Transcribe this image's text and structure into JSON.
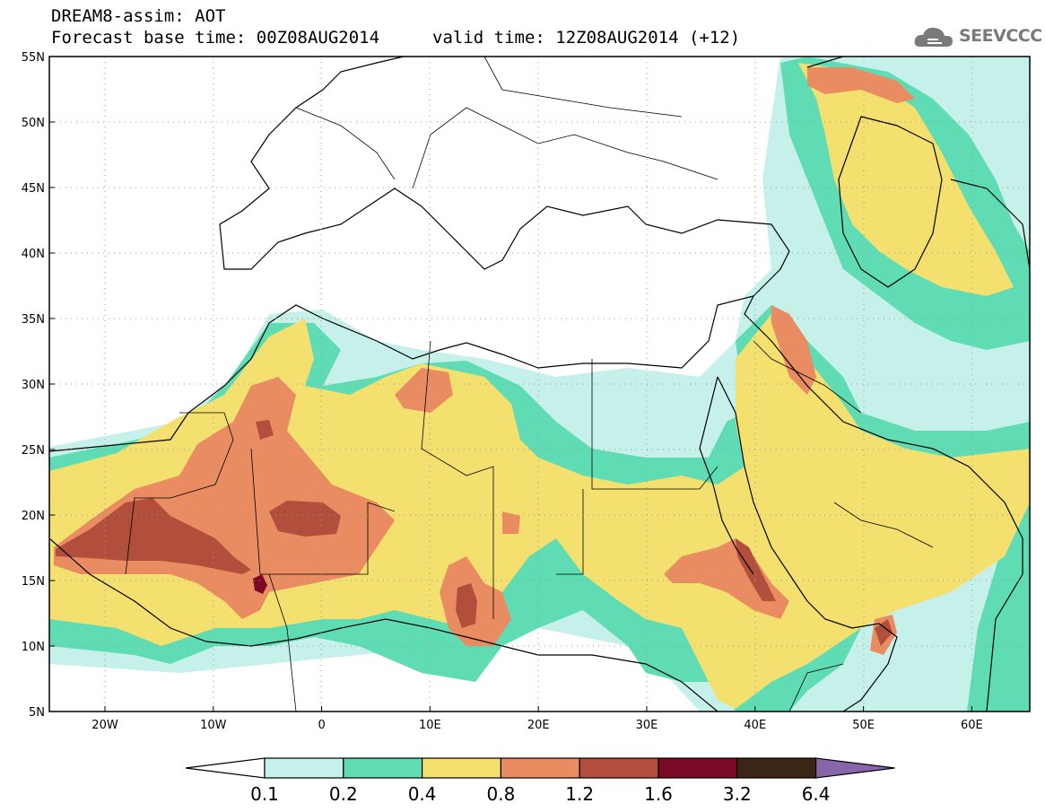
{
  "header": {
    "line1": "DREAM8-assim: AOT",
    "line2_left": "Forecast base time: 00Z08AUG2014",
    "line2_right": "valid time: 12Z08AUG2014 (+12)",
    "logo_text": "SEEVCCC"
  },
  "map": {
    "lon_range": [
      -25,
      65
    ],
    "lat_range": [
      5,
      55
    ],
    "y_ticks": [
      "55N",
      "50N",
      "45N",
      "40N",
      "35N",
      "30N",
      "25N",
      "20N",
      "15N",
      "10N",
      "5N"
    ],
    "x_ticks": [
      "20W",
      "10W",
      "0",
      "10E",
      "20E",
      "30E",
      "40E",
      "50E",
      "60E"
    ]
  },
  "colorbar": {
    "labels": [
      "0.1",
      "0.2",
      "0.4",
      "0.8",
      "1.2",
      "1.6",
      "3.2",
      "6.4"
    ],
    "colors": [
      "#ffffff",
      "#c6f0ea",
      "#5fdcb4",
      "#f4e06e",
      "#e98c62",
      "#b14f3c",
      "#7b0a26",
      "#3b2616",
      "#8a64a8"
    ]
  },
  "colors": {
    "level1": "#c6f0ea",
    "level2": "#5fdcb4",
    "level3": "#f4e06e",
    "level4": "#e98c62",
    "level5": "#b14f3c",
    "level6": "#7b0a26"
  }
}
